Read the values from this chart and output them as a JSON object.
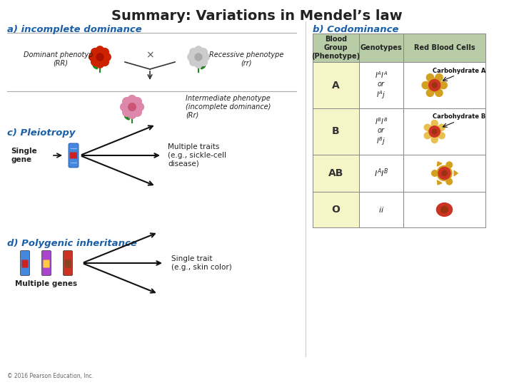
{
  "title": "Summary: Variations in Mendel’s law",
  "title_fontsize": 14,
  "title_color": "#222222",
  "bg_color": "#ffffff",
  "section_a_title": "a) incomplete dominance",
  "section_b_title": "b) Codominance",
  "section_c_title": "c) Pleiotropy",
  "section_d_title": "d) Polygenic inheritance",
  "section_title_color": "#1a5fa8",
  "section_title_fontsize": 9.5,
  "dominant_label": "Dominant phenotype\n(RR)",
  "recessive_label": "Recessive phenotype\n(rr)",
  "intermediate_label": "Intermediate phenotype\n(incomplete dominance)\n(Rr)",
  "single_gene_label": "Single\ngene",
  "multiple_traits_label": "Multiple traits\n(e.g., sickle-cell\ndisease)",
  "multiple_genes_label": "Multiple genes",
  "single_trait_label": "Single trait\n(e.g., skin color)",
  "copyright": "© 2016 Pearson Education, Inc.",
  "table_header_bg": "#b8cca8",
  "table_row_bg": "#f5f5c8",
  "table_col1": "Blood\nGroup\n(Phenotype)",
  "table_col2": "Genotypes",
  "table_col3": "Red Blood Cells",
  "arrow_color": "#111111",
  "cross_color": "#555555",
  "separator_line_color": "#aaaaaa",
  "red_color": "#cc2200",
  "pink_color": "#dd88aa",
  "pink_center": "#cc5577",
  "white_flower_color": "#cccccc",
  "green_stem": "#228822",
  "cell_red": "#cc3322",
  "cell_dark": "#993311",
  "cell_gold": "#d4a020",
  "cell_gold2": "#e8c050"
}
